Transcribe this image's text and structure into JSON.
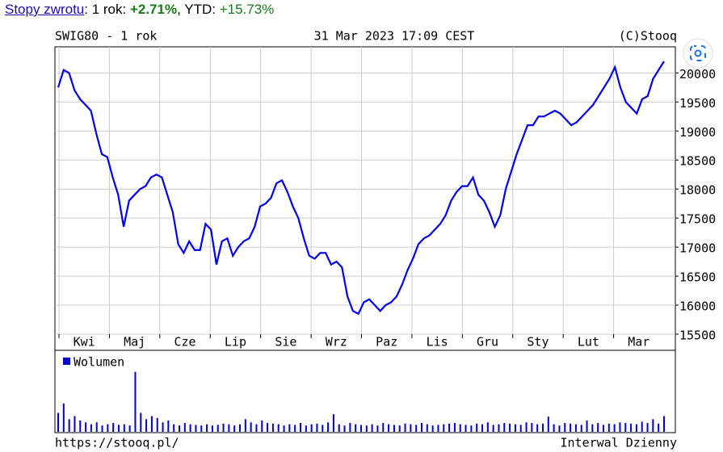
{
  "header": {
    "link": "Stopy zwrotu",
    "label_1y": ": 1 rok: ",
    "return_1y": "+2.71%",
    "label_ytd": ", YTD: ",
    "return_ytd": "+15.73%"
  },
  "chart_data": [
    {
      "type": "line",
      "title": "SWIG80 - 1 rok",
      "subtitle": "31 Mar 2023 17:09 CEST",
      "source": "(C)Stooq",
      "month_labels": [
        "Kwi",
        "Maj",
        "Cze",
        "Lip",
        "Sie",
        "Wrz",
        "Paz",
        "Lis",
        "Gru",
        "Sty",
        "Lut",
        "Mar"
      ],
      "series": [
        {
          "color": "#0000ee",
          "values": [
            19750,
            20050,
            20000,
            19700,
            19550,
            19450,
            19350,
            18950,
            18600,
            18550,
            18200,
            17900,
            17350,
            17800,
            17900,
            18000,
            18050,
            18200,
            18250,
            18200,
            17900,
            17600,
            17050,
            16900,
            17100,
            16950,
            16950,
            17400,
            17300,
            16700,
            17100,
            17150,
            16850,
            17000,
            17100,
            17150,
            17350,
            17700,
            17750,
            17850,
            18100,
            18150,
            17950,
            17700,
            17500,
            17150,
            16850,
            16800,
            16900,
            16900,
            16700,
            16750,
            16650,
            16150,
            15900,
            15850,
            16050,
            16100,
            16000,
            15900,
            16000,
            16050,
            16150,
            16350,
            16600,
            16800,
            17050,
            17150,
            17200,
            17300,
            17400,
            17550,
            17800,
            17950,
            18050,
            18050,
            18200,
            17900,
            17800,
            17600,
            17350,
            17550,
            18000,
            18300,
            18600,
            18850,
            19100,
            19100,
            19250,
            19250,
            19300,
            19350,
            19300,
            19200,
            19100,
            19150,
            19250,
            19350,
            19450,
            19600,
            19750,
            19900,
            20100,
            19750,
            19500,
            19400,
            19300,
            19550,
            19600,
            19900,
            20050,
            20200
          ]
        }
      ],
      "ylim": [
        15500,
        20450
      ],
      "yticks": [
        15500,
        16000,
        16500,
        17000,
        17500,
        18000,
        18500,
        19000,
        19500,
        20000
      ],
      "grid": true
    },
    {
      "type": "bar",
      "series": [
        {
          "name": "Wolumen",
          "color": "#0000cc",
          "values": [
            30,
            45,
            20,
            25,
            18,
            15,
            12,
            15,
            10,
            12,
            14,
            11,
            12,
            10,
            95,
            30,
            20,
            25,
            22,
            15,
            18,
            12,
            10,
            14,
            12,
            11,
            10,
            12,
            10,
            11,
            13,
            12,
            10,
            12,
            20,
            15,
            12,
            18,
            14,
            13,
            12,
            10,
            12,
            11,
            14,
            10,
            12,
            13,
            11,
            15,
            28,
            12,
            10,
            14,
            12,
            11,
            10,
            12,
            10,
            14,
            12,
            11,
            10,
            13,
            12,
            11,
            14,
            12,
            10,
            11,
            12,
            13,
            14,
            12,
            11,
            10,
            13,
            12,
            15,
            11,
            12,
            14,
            13,
            12,
            11,
            15,
            14,
            12,
            13,
            24,
            12,
            10,
            14,
            13,
            12,
            11,
            18,
            12,
            14,
            11,
            13,
            12,
            15,
            14,
            13,
            12,
            16,
            14,
            20,
            13,
            25
          ]
        }
      ]
    }
  ],
  "footer": {
    "url": "https://stooq.pl/",
    "interval": "Interwal Dzienny"
  }
}
